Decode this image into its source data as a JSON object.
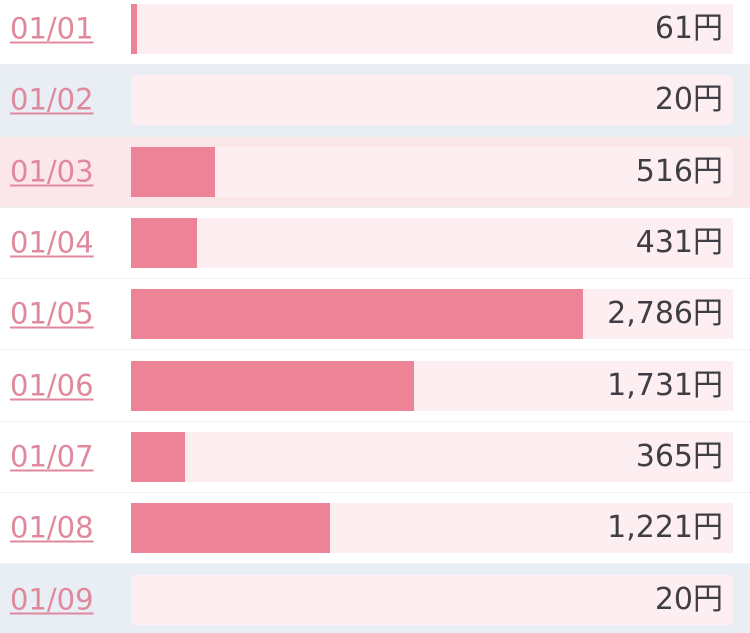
{
  "chart_data": {
    "type": "bar",
    "orientation": "horizontal",
    "categories": [
      "01/01",
      "01/02",
      "01/03",
      "01/04",
      "01/05",
      "01/06",
      "01/07",
      "01/08",
      "01/09"
    ],
    "values": [
      61,
      20,
      516,
      431,
      2786,
      1731,
      365,
      1221,
      20
    ],
    "value_labels": [
      "61円",
      "20円",
      "516円",
      "431円",
      "2,786円",
      "1,731円",
      "365円",
      "1,221円",
      "20円"
    ],
    "unit": "円",
    "title": "",
    "xlabel": "",
    "ylabel": "",
    "xlim": [
      0,
      3680
    ],
    "grid": false,
    "legend": "none",
    "bar_label_position": "inside-right-of-track"
  },
  "scale_max": 3680,
  "rows": [
    {
      "date": "01/01",
      "value": 61,
      "label": "61円",
      "day_type": "weekday"
    },
    {
      "date": "01/02",
      "value": 20,
      "label": "20円",
      "day_type": "saturday"
    },
    {
      "date": "01/03",
      "value": 516,
      "label": "516円",
      "day_type": "sunday"
    },
    {
      "date": "01/04",
      "value": 431,
      "label": "431円",
      "day_type": "weekday"
    },
    {
      "date": "01/05",
      "value": 2786,
      "label": "2,786円",
      "day_type": "weekday"
    },
    {
      "date": "01/06",
      "value": 1731,
      "label": "1,731円",
      "day_type": "weekday"
    },
    {
      "date": "01/07",
      "value": 365,
      "label": "365円",
      "day_type": "weekday"
    },
    {
      "date": "01/08",
      "value": 1221,
      "label": "1,221円",
      "day_type": "weekday"
    },
    {
      "date": "01/09",
      "value": 20,
      "label": "20円",
      "day_type": "saturday"
    }
  ],
  "colors": {
    "bar": "#ec8397",
    "track": "#fdeef1",
    "row_weekday_bg": "#ffffff",
    "row_saturday_bg": "#e9eef5",
    "row_sunday_bg": "#fbe7ea",
    "date_link": "#e0899d",
    "value_text": "#3e3e44",
    "separator": "#f2f0f0"
  }
}
